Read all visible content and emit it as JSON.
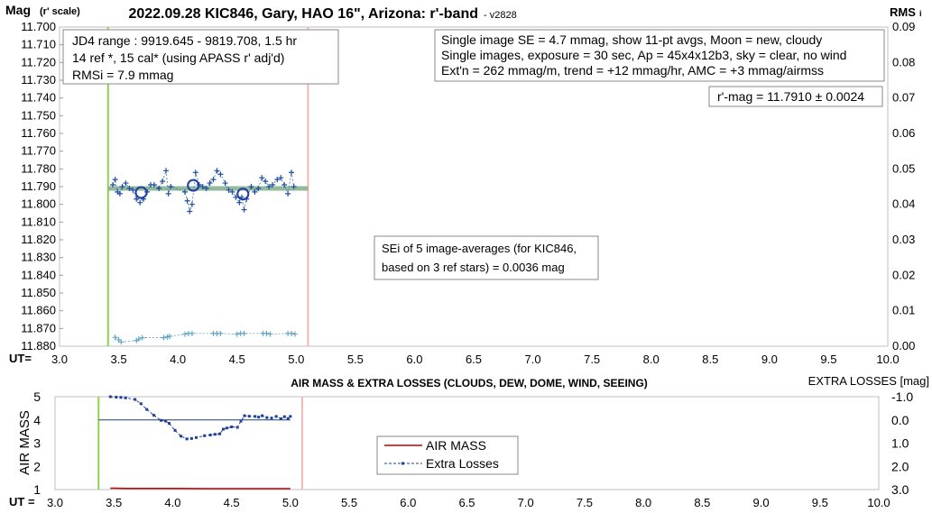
{
  "chart_data": [
    {
      "type": "scatter",
      "title": "2022.09.28 KIC846, Gary, HAO 16\", Arizona: r'-band",
      "version": "- v2828",
      "ylabel_main": "Mag",
      "ylabel_sub": "(r' scale)",
      "y2label_main": "RMS",
      "y2label_sub": "i",
      "xlabel": "UT=",
      "xlim": [
        3.0,
        10.0
      ],
      "ylim": [
        11.88,
        11.7
      ],
      "y2lim": [
        0.0,
        0.09
      ],
      "x_ticks": [
        "3.0",
        "3.5",
        "4.0",
        "4.5",
        "5.0",
        "5.5",
        "6.0",
        "6.5",
        "7.0",
        "7.5",
        "8.0",
        "8.5",
        "9.0",
        "9.5",
        "10.0"
      ],
      "y_ticks": [
        "11.700",
        "11.710",
        "11.720",
        "11.730",
        "11.740",
        "11.750",
        "11.760",
        "11.770",
        "11.780",
        "11.790",
        "11.800",
        "11.810",
        "11.820",
        "11.830",
        "11.840",
        "11.850",
        "11.860",
        "11.870",
        "11.880"
      ],
      "y2_ticks": [
        "0.09",
        "0.08",
        "0.07",
        "0.06",
        "0.05",
        "0.04",
        "0.03",
        "0.02",
        "0.01",
        "0.00"
      ],
      "vertical_markers": [
        {
          "x": 3.41,
          "color": "#92d050"
        },
        {
          "x": 5.1,
          "color": "#f4b6b6"
        }
      ],
      "fit_line": {
        "x0": 3.41,
        "x1": 5.1,
        "y": 11.791,
        "color": "#7fae8a"
      },
      "series": [
        {
          "kind": "individual",
          "color": "#1f4e9c",
          "x": [
            3.45,
            3.47,
            3.49,
            3.51,
            3.53,
            3.56,
            3.59,
            3.62,
            3.65,
            3.68,
            3.71,
            3.74,
            3.77,
            3.8,
            3.84,
            3.87,
            3.9,
            3.92,
            3.94,
            4.06,
            4.08,
            4.1,
            4.12,
            4.15,
            4.18,
            4.21,
            4.24,
            4.27,
            4.3,
            4.33,
            4.36,
            4.4,
            4.43,
            4.46,
            4.49,
            4.52,
            4.54,
            4.56,
            4.58,
            4.62,
            4.65,
            4.68,
            4.71,
            4.74,
            4.77,
            4.8,
            4.84,
            4.87,
            4.9,
            4.93,
            4.96,
            4.98
          ],
          "y": [
            11.789,
            11.786,
            11.793,
            11.794,
            11.79,
            11.788,
            11.791,
            11.792,
            11.797,
            11.799,
            11.797,
            11.793,
            11.789,
            11.789,
            11.791,
            11.787,
            11.781,
            11.794,
            11.79,
            11.793,
            11.798,
            11.804,
            11.8,
            11.782,
            11.789,
            11.79,
            11.791,
            11.788,
            11.786,
            11.781,
            11.783,
            11.788,
            11.792,
            11.793,
            11.796,
            11.799,
            11.796,
            11.803,
            11.797,
            11.79,
            11.793,
            11.791,
            11.785,
            11.787,
            11.79,
            11.789,
            11.786,
            11.785,
            11.789,
            11.794,
            11.782,
            11.79
          ]
        },
        {
          "kind": "averages",
          "color": "#1f3fa0",
          "x": [
            3.69,
            4.13,
            4.55
          ],
          "y": [
            11.7933,
            11.7893,
            11.7942
          ]
        },
        {
          "kind": "rms",
          "axis": "y2",
          "color": "#5ba3c4",
          "x": [
            3.47,
            3.5,
            3.52,
            3.65,
            3.67,
            3.7,
            3.88,
            3.91,
            3.93,
            4.06,
            4.09,
            4.12,
            4.3,
            4.33,
            4.36,
            4.5,
            4.53,
            4.56,
            4.72,
            4.75,
            4.78,
            4.93,
            4.96,
            4.99
          ],
          "y": [
            0.0025,
            0.0018,
            0.0012,
            0.0016,
            0.002,
            0.0024,
            0.0024,
            0.0026,
            0.0028,
            0.0034,
            0.0036,
            0.0036,
            0.0036,
            0.0036,
            0.0036,
            0.0034,
            0.0036,
            0.0036,
            0.0036,
            0.0036,
            0.0034,
            0.0036,
            0.0036,
            0.0034
          ]
        }
      ],
      "info_box_left": [
        "JD4 range : 9919.645 - 9819.708,  1.5  hr",
        "14 ref *, 15 cal* (using APASS r' adj'd)",
        "RMSi = 7.9 mmag"
      ],
      "info_box_right": [
        "Single image SE = 4.7 mmag, show  11-pt avgs, Moon = new, cloudy",
        "Single images, exposure = 30 sec, Ap = 45x4x12b3, sky = clear, no wind",
        "Ext'n = 262 mmag/m, trend = +12  mmag/hr, AMC = +3 mmag/airmss"
      ],
      "result_box": "r'-mag = 11.7910 ± 0.0024",
      "sei_box": [
        "SEi of 5 image-averages (for KIC846,",
        "based on 3 ref stars) = 0.0036 mag"
      ]
    },
    {
      "type": "line",
      "title": "AIR MASS & EXTRA LOSSES (CLOUDS, DEW, DOME, WIND, SEEING)",
      "ylabel": "AIR MASS",
      "y2label": "EXTRA LOSSES [mag]",
      "xlabel": "UT =",
      "xlim": [
        3.0,
        10.0
      ],
      "ylim": [
        1,
        5
      ],
      "y2lim": [
        3.0,
        -1.0
      ],
      "x_ticks": [
        "3.0",
        "3.5",
        "4.0",
        "4.5",
        "5.0",
        "5.5",
        "6.0",
        "6.5",
        "7.0",
        "7.5",
        "8.0",
        "8.5",
        "9.0",
        "9.5",
        "10.0"
      ],
      "y_ticks": [
        "1",
        "2",
        "3",
        "4",
        "5"
      ],
      "y2_ticks": [
        "-1.0",
        "0.0",
        "1.0",
        "2.0",
        "3.0"
      ],
      "vertical_markers": [
        {
          "x": 3.37,
          "color": "#92d050"
        },
        {
          "x": 5.1,
          "color": "#f4b6b6"
        }
      ],
      "zero_line": {
        "x0": 3.37,
        "x1": 5.0,
        "y2": 0.0,
        "color": "#1f3f7a"
      },
      "series": [
        {
          "name": "AIR MASS",
          "axis": "y",
          "color": "#c00000",
          "x": [
            3.47,
            3.6,
            3.8,
            4.0,
            4.3,
            4.6,
            5.0
          ],
          "y": [
            1.06,
            1.05,
            1.05,
            1.05,
            1.04,
            1.04,
            1.04
          ]
        },
        {
          "name": "Extra Losses",
          "axis": "y2",
          "color": "#1f3f9c",
          "x": [
            3.47,
            3.52,
            3.56,
            3.6,
            3.68,
            3.73,
            3.78,
            3.84,
            3.9,
            3.94,
            3.97,
            4.02,
            4.07,
            4.12,
            4.16,
            4.2,
            4.27,
            4.32,
            4.36,
            4.4,
            4.43,
            4.46,
            4.5,
            4.55,
            4.58,
            4.61,
            4.65,
            4.7,
            4.73,
            4.76,
            4.8,
            4.84,
            4.88,
            4.92,
            4.95,
            4.98,
            5.0
          ],
          "y": [
            -1.0,
            -0.98,
            -0.97,
            -0.95,
            -0.88,
            -0.7,
            -0.45,
            -0.2,
            0.02,
            0.05,
            0.15,
            0.45,
            0.7,
            0.82,
            0.8,
            0.76,
            0.68,
            0.65,
            0.62,
            0.6,
            0.4,
            0.35,
            0.3,
            0.32,
            0.05,
            -0.18,
            -0.16,
            -0.15,
            -0.12,
            -0.18,
            -0.1,
            -0.08,
            -0.15,
            -0.05,
            -0.14,
            -0.06,
            -0.15
          ]
        }
      ],
      "legend": [
        "AIR MASS",
        "Extra Losses"
      ],
      "legend_position": "center"
    }
  ]
}
